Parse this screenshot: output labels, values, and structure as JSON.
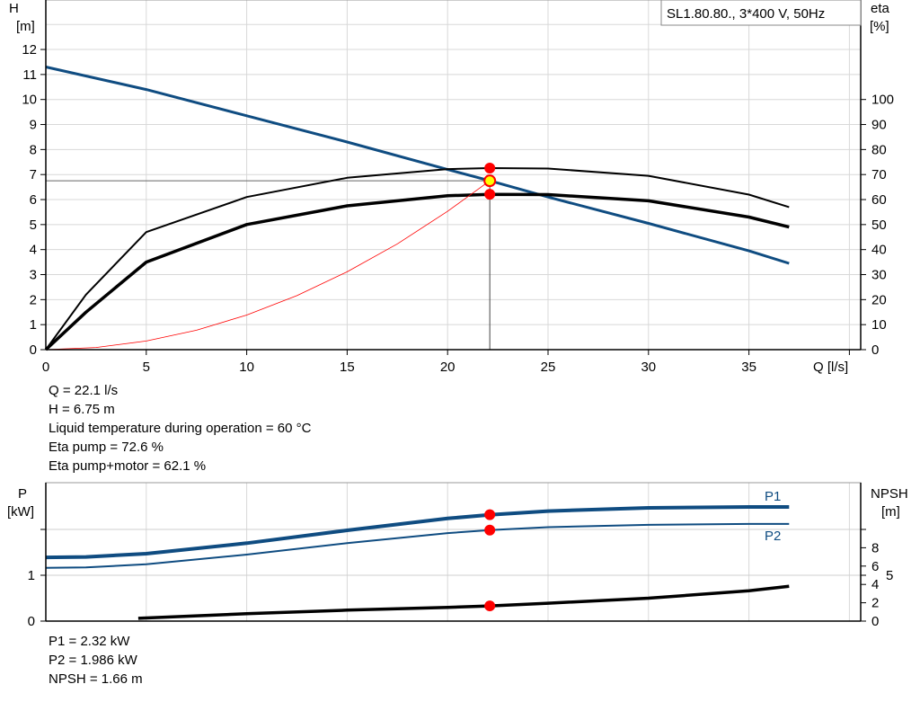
{
  "chart_data": [
    {
      "type": "line",
      "legend_box": "SL1.80.80., 3*400 V, 50Hz",
      "xlabel": "Q [l/s]",
      "ylabel_left": [
        "H",
        "[m]"
      ],
      "ylabel_right": [
        "eta",
        "[%]"
      ],
      "xlim": [
        0,
        40
      ],
      "ylim_left": [
        0,
        14
      ],
      "ylim_right": [
        0,
        140
      ],
      "x_ticks": [
        "0",
        "5",
        "10",
        "15",
        "20",
        "25",
        "30",
        "35"
      ],
      "y_left_ticks": [
        "0",
        "1",
        "2",
        "3",
        "4",
        "5",
        "6",
        "7",
        "8",
        "9",
        "10",
        "11",
        "12"
      ],
      "y_right_ticks": [
        "0",
        "10",
        "20",
        "30",
        "40",
        "50",
        "60",
        "70",
        "80",
        "90",
        "100"
      ],
      "grid": true,
      "series": [
        {
          "axis": "left",
          "color": "#0f4c81",
          "x": [
            0,
            5,
            10,
            15,
            20,
            22.1,
            25,
            30,
            35,
            37
          ],
          "y": [
            11.3,
            10.4,
            9.35,
            8.3,
            7.2,
            6.75,
            6.1,
            5.05,
            3.95,
            3.45
          ]
        },
        {
          "axis": "right",
          "color": "#000000",
          "x": [
            0,
            2,
            5,
            10,
            15,
            20,
            22.1,
            25,
            30,
            35,
            37
          ],
          "y": [
            0,
            22,
            47,
            61,
            68.7,
            72.2,
            72.6,
            72.4,
            69.5,
            62,
            57
          ]
        },
        {
          "axis": "right",
          "color": "#000000",
          "x": [
            0,
            2,
            5,
            10,
            15,
            20,
            22.1,
            25,
            30,
            35,
            37
          ],
          "y": [
            0,
            15,
            35,
            50,
            57.5,
            61.5,
            62.1,
            62,
            59.5,
            53,
            49
          ]
        },
        {
          "axis": "left",
          "color": "#ff0000",
          "x": [
            0,
            2.5,
            5,
            7.5,
            10,
            12.5,
            15,
            17.5,
            20,
            22.1
          ],
          "y": [
            0,
            0.086,
            0.345,
            0.777,
            1.382,
            2.16,
            3.11,
            4.23,
            5.53,
            6.75
          ]
        }
      ],
      "operating_point": {
        "Q": 22.1,
        "H": 6.75,
        "eta_pump": 72.6,
        "eta_pump_motor": 62.1
      },
      "readout": [
        "Q = 22.1 l/s",
        "H = 6.75 m",
        "Liquid temperature during operation = 60 °C",
        "Eta pump = 72.6 %",
        "Eta pump+motor = 62.1 %"
      ]
    },
    {
      "type": "line",
      "ylabel_left": [
        "P",
        "[kW]"
      ],
      "ylabel_right": [
        "NPSH",
        "[m]"
      ],
      "xlim": [
        0,
        40
      ],
      "ylim_left": [
        0,
        3
      ],
      "ylim_right": [
        0,
        15
      ],
      "y_left_ticks": [
        "0",
        "1"
      ],
      "y_right_ticks": [
        "0",
        "2",
        "4",
        "5",
        "6",
        "8"
      ],
      "grid": true,
      "series": [
        {
          "name": "P1",
          "axis": "left",
          "color": "#0f4c81",
          "x": [
            0,
            2,
            5,
            10,
            15,
            20,
            22.1,
            25,
            30,
            35,
            37
          ],
          "y": [
            1.39,
            1.4,
            1.47,
            1.7,
            1.98,
            2.24,
            2.32,
            2.4,
            2.47,
            2.49,
            2.49
          ]
        },
        {
          "name": "P2",
          "axis": "left",
          "color": "#0f4c81",
          "x": [
            0,
            2,
            5,
            10,
            15,
            20,
            22.1,
            25,
            30,
            35,
            37
          ],
          "y": [
            1.16,
            1.17,
            1.24,
            1.45,
            1.7,
            1.92,
            1.986,
            2.05,
            2.1,
            2.12,
            2.12
          ]
        },
        {
          "axis": "right",
          "color": "#000000",
          "x": [
            4.6,
            10,
            15,
            20,
            22.1,
            25,
            30,
            35,
            37
          ],
          "y": [
            0.3,
            0.8,
            1.2,
            1.5,
            1.66,
            1.95,
            2.5,
            3.3,
            3.8
          ]
        }
      ],
      "operating_point": {
        "Q": 22.1,
        "P1": 2.32,
        "P2": 1.986,
        "NPSH": 1.66
      },
      "readout": [
        "P1 = 2.32 kW",
        "P2 = 1.986 kW",
        "NPSH = 1.66 m"
      ]
    }
  ]
}
